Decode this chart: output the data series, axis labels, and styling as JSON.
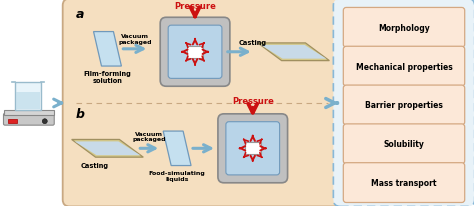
{
  "bg_color": "#ffffff",
  "main_box_color": "#f5dfc0",
  "main_box_edge": "#c8a882",
  "dashed_box_color": "#e8f2f8",
  "dashed_box_edge": "#88b8d8",
  "label_box_color": "#fce8d8",
  "label_box_edge": "#d4a882",
  "arrow_color": "#7ab0cc",
  "pressure_arrow_color": "#cc1111",
  "label_a": "a",
  "label_b": "b",
  "labels": [
    "Morphology",
    "Mechanical properties",
    "Barrier properties",
    "Solubility",
    "Mass transport"
  ],
  "pressure_text": "Pressure",
  "film_text": "Film-forming\nsolution",
  "food_text": "Food-simulating\nliquids",
  "vacuum_text": "Vacuum\npackaged",
  "casting_text": "Casting"
}
